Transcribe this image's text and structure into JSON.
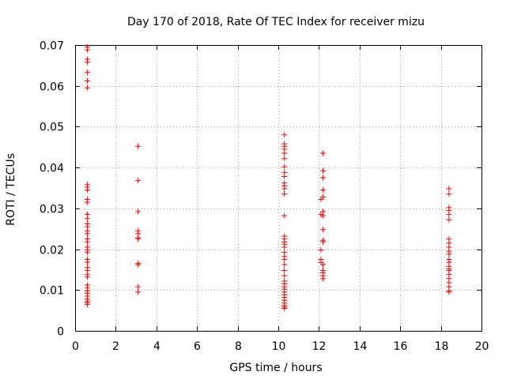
{
  "chart_data": {
    "type": "scatter",
    "title": "Day 170 of 2018, Rate Of TEC Index for receiver mizu",
    "xlabel": "GPS time / hours",
    "ylabel": "ROTI / TECUs",
    "xlim": [
      0,
      20
    ],
    "ylim": [
      0,
      0.07
    ],
    "xticks": [
      0,
      2,
      4,
      6,
      8,
      10,
      12,
      14,
      16,
      18,
      20
    ],
    "yticks": [
      0,
      0.01,
      0.02,
      0.03,
      0.04,
      0.05,
      0.06,
      0.07
    ],
    "xtick_labels": [
      "0",
      "2",
      "4",
      "6",
      "8",
      "10",
      "12",
      "14",
      "16",
      "18",
      "20"
    ],
    "ytick_labels": [
      "0",
      "0.01",
      "0.02",
      "0.03",
      "0.04",
      "0.05",
      "0.06",
      "0.07"
    ],
    "grid": true,
    "marker": "+",
    "marker_color": "#ff0000",
    "series": [
      {
        "name": "ROTI",
        "points": [
          [
            0.6,
            0.0695
          ],
          [
            0.6,
            0.0688
          ],
          [
            0.6,
            0.0665
          ],
          [
            0.6,
            0.0658
          ],
          [
            0.6,
            0.0633
          ],
          [
            0.6,
            0.0612
          ],
          [
            0.6,
            0.0595
          ],
          [
            0.6,
            0.0358
          ],
          [
            0.6,
            0.0352
          ],
          [
            0.6,
            0.0345
          ],
          [
            0.6,
            0.0322
          ],
          [
            0.6,
            0.0315
          ],
          [
            0.6,
            0.0285
          ],
          [
            0.6,
            0.0275
          ],
          [
            0.6,
            0.0262
          ],
          [
            0.6,
            0.0255
          ],
          [
            0.6,
            0.0245
          ],
          [
            0.6,
            0.0238
          ],
          [
            0.6,
            0.0225
          ],
          [
            0.6,
            0.0218
          ],
          [
            0.6,
            0.0205
          ],
          [
            0.6,
            0.0198
          ],
          [
            0.6,
            0.0192
          ],
          [
            0.6,
            0.0175
          ],
          [
            0.6,
            0.0168
          ],
          [
            0.6,
            0.0155
          ],
          [
            0.6,
            0.0148
          ],
          [
            0.6,
            0.0138
          ],
          [
            0.6,
            0.0132
          ],
          [
            0.6,
            0.0112
          ],
          [
            0.6,
            0.0105
          ],
          [
            0.6,
            0.0098
          ],
          [
            0.6,
            0.0092
          ],
          [
            0.6,
            0.0085
          ],
          [
            0.6,
            0.0078
          ],
          [
            0.6,
            0.0073
          ],
          [
            0.6,
            0.0069
          ],
          [
            0.6,
            0.0065
          ],
          [
            3.1,
            0.0452
          ],
          [
            3.1,
            0.0368
          ],
          [
            3.1,
            0.0292
          ],
          [
            3.1,
            0.0245
          ],
          [
            3.1,
            0.0238
          ],
          [
            3.1,
            0.0228
          ],
          [
            3.1,
            0.0225
          ],
          [
            3.1,
            0.0165
          ],
          [
            3.1,
            0.0162
          ],
          [
            3.1,
            0.0108
          ],
          [
            3.1,
            0.0095
          ],
          [
            10.3,
            0.048
          ],
          [
            10.3,
            0.0458
          ],
          [
            10.3,
            0.0452
          ],
          [
            10.3,
            0.0445
          ],
          [
            10.3,
            0.0435
          ],
          [
            10.3,
            0.0422
          ],
          [
            10.3,
            0.0402
          ],
          [
            10.3,
            0.0388
          ],
          [
            10.3,
            0.0378
          ],
          [
            10.3,
            0.0362
          ],
          [
            10.3,
            0.0355
          ],
          [
            10.3,
            0.0348
          ],
          [
            10.3,
            0.0335
          ],
          [
            10.3,
            0.0282
          ],
          [
            10.3,
            0.0232
          ],
          [
            10.3,
            0.0225
          ],
          [
            10.3,
            0.0218
          ],
          [
            10.3,
            0.0212
          ],
          [
            10.3,
            0.0205
          ],
          [
            10.3,
            0.0192
          ],
          [
            10.3,
            0.0182
          ],
          [
            10.3,
            0.0175
          ],
          [
            10.3,
            0.0162
          ],
          [
            10.3,
            0.0148
          ],
          [
            10.3,
            0.0135
          ],
          [
            10.3,
            0.0122
          ],
          [
            10.3,
            0.0115
          ],
          [
            10.3,
            0.0108
          ],
          [
            10.3,
            0.0102
          ],
          [
            10.3,
            0.0095
          ],
          [
            10.3,
            0.0088
          ],
          [
            10.3,
            0.0082
          ],
          [
            10.3,
            0.0075
          ],
          [
            10.3,
            0.0068
          ],
          [
            10.3,
            0.0062
          ],
          [
            10.3,
            0.0058
          ],
          [
            10.3,
            0.0055
          ],
          [
            12.2,
            0.0435
          ],
          [
            12.2,
            0.0392
          ],
          [
            12.2,
            0.0375
          ],
          [
            12.2,
            0.0345
          ],
          [
            12.2,
            0.0328
          ],
          [
            12.1,
            0.0322
          ],
          [
            12.2,
            0.0292
          ],
          [
            12.1,
            0.0285
          ],
          [
            12.2,
            0.0282
          ],
          [
            12.2,
            0.0248
          ],
          [
            12.2,
            0.0222
          ],
          [
            12.2,
            0.0218
          ],
          [
            12.1,
            0.0198
          ],
          [
            12.1,
            0.0175
          ],
          [
            12.1,
            0.0168
          ],
          [
            12.2,
            0.0162
          ],
          [
            12.2,
            0.0148
          ],
          [
            12.2,
            0.0142
          ],
          [
            12.2,
            0.0135
          ],
          [
            12.2,
            0.0128
          ],
          [
            18.4,
            0.0348
          ],
          [
            18.4,
            0.0335
          ],
          [
            18.4,
            0.0302
          ],
          [
            18.4,
            0.0295
          ],
          [
            18.4,
            0.0285
          ],
          [
            18.4,
            0.0272
          ],
          [
            18.4,
            0.0225
          ],
          [
            18.4,
            0.0215
          ],
          [
            18.4,
            0.0205
          ],
          [
            18.4,
            0.0195
          ],
          [
            18.4,
            0.0188
          ],
          [
            18.4,
            0.0175
          ],
          [
            18.4,
            0.0168
          ],
          [
            18.4,
            0.0158
          ],
          [
            18.4,
            0.0152
          ],
          [
            18.4,
            0.0148
          ],
          [
            18.4,
            0.0138
          ],
          [
            18.4,
            0.0128
          ],
          [
            18.4,
            0.0118
          ],
          [
            18.4,
            0.0108
          ],
          [
            18.4,
            0.0098
          ],
          [
            18.4,
            0.0095
          ]
        ]
      }
    ]
  }
}
